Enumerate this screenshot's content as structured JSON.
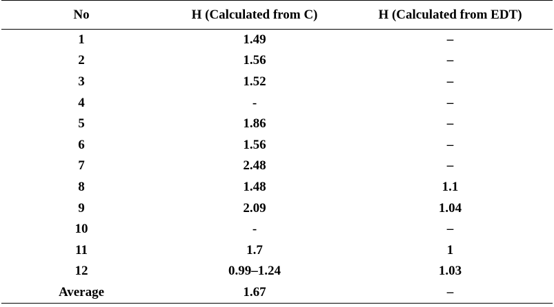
{
  "table": {
    "headers": [
      "No",
      "H (Calculated from C)",
      "H (Calculated from EDT)"
    ],
    "rows": [
      [
        "1",
        "1.49",
        "–"
      ],
      [
        "2",
        "1.56",
        "–"
      ],
      [
        "3",
        "1.52",
        "–"
      ],
      [
        "4",
        "-",
        "–"
      ],
      [
        "5",
        "1.86",
        "–"
      ],
      [
        "6",
        "1.56",
        "–"
      ],
      [
        "7",
        "2.48",
        "–"
      ],
      [
        "8",
        "1.48",
        "1.1"
      ],
      [
        "9",
        "2.09",
        "1.04"
      ],
      [
        "10",
        "-",
        "–"
      ],
      [
        "11",
        "1.7",
        "1"
      ],
      [
        "12",
        "0.99–1.24",
        "1.03"
      ],
      [
        "Average",
        "1.67",
        "–"
      ]
    ]
  }
}
